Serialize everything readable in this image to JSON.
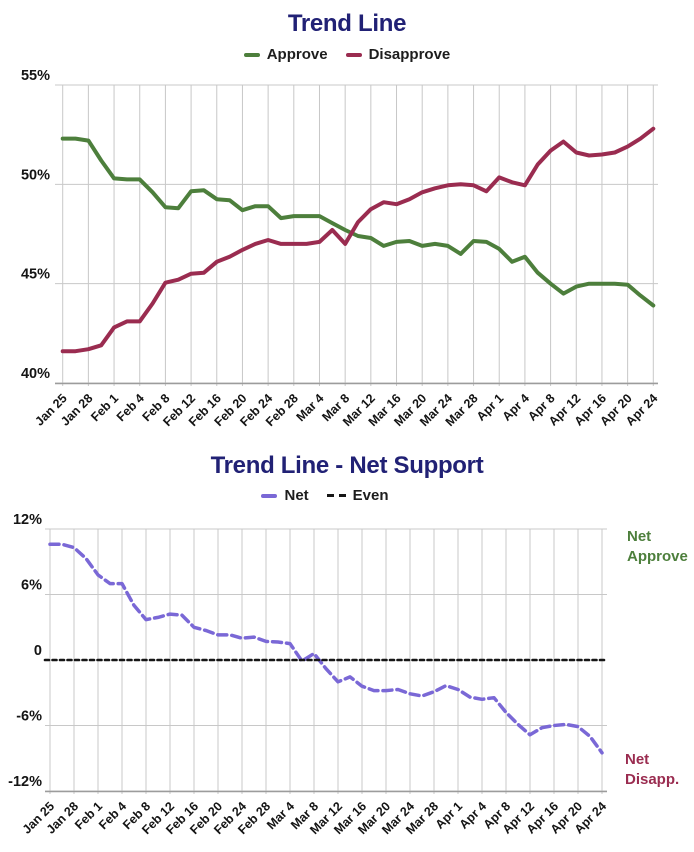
{
  "chart_data": [
    {
      "type": "line",
      "title": "Trend Line",
      "legend_position": "top-center",
      "grid": true,
      "ylim": [
        40,
        55
      ],
      "yticks": [
        {
          "value": 55,
          "label": "55%"
        },
        {
          "value": 50,
          "label": "50%"
        },
        {
          "value": 45,
          "label": "45%"
        },
        {
          "value": 40,
          "label": "40%"
        }
      ],
      "x_tick_labels": [
        "Jan 25",
        "Jan 28",
        "Feb 1",
        "Feb 4",
        "Feb 8",
        "Feb 12",
        "Feb 16",
        "Feb 20",
        "Feb 24",
        "Feb 28",
        "Mar 4",
        "Mar 8",
        "Mar 12",
        "Mar 16",
        "Mar 20",
        "Mar 24",
        "Mar 28",
        "Apr 1",
        "Apr 4",
        "Apr 8",
        "Apr 12",
        "Apr 16",
        "Apr 20",
        "Apr 24"
      ],
      "points_per_tick_interval": 2,
      "series": [
        {
          "name": "Approve",
          "color": "#4d7f3c",
          "line_style": "solid",
          "values": [
            52.3,
            52.3,
            52.2,
            51.2,
            50.3,
            50.25,
            50.25,
            49.6,
            48.85,
            48.8,
            49.65,
            49.7,
            49.25,
            49.2,
            48.7,
            48.9,
            48.9,
            48.3,
            48.4,
            48.4,
            48.4,
            48.05,
            47.7,
            47.4,
            47.3,
            46.9,
            47.1,
            47.15,
            46.9,
            47.0,
            46.9,
            46.5,
            47.15,
            47.1,
            46.75,
            46.1,
            46.35,
            45.55,
            45.0,
            44.5,
            44.85,
            45.0,
            45.0,
            45.0,
            44.95,
            44.4,
            43.9
          ]
        },
        {
          "name": "Disapprove",
          "color": "#9a2c50",
          "line_style": "solid",
          "values": [
            41.6,
            41.6,
            41.7,
            41.9,
            42.8,
            43.1,
            43.1,
            44.0,
            45.05,
            45.2,
            45.5,
            45.55,
            46.1,
            46.35,
            46.7,
            47.0,
            47.2,
            47.0,
            47.0,
            47.0,
            47.1,
            47.7,
            47.0,
            48.1,
            48.75,
            49.1,
            49.0,
            49.25,
            49.6,
            49.8,
            49.95,
            50.0,
            49.95,
            49.65,
            50.35,
            50.1,
            49.95,
            51.0,
            51.7,
            52.15,
            51.6,
            51.45,
            51.5,
            51.6,
            51.9,
            52.3,
            52.8
          ]
        }
      ]
    },
    {
      "type": "line",
      "title": "Trend Line - Net Support",
      "legend_position": "top-center",
      "grid": true,
      "ylim": [
        -12,
        12
      ],
      "yticks": [
        {
          "value": 12,
          "label": "12%"
        },
        {
          "value": 6,
          "label": "6%"
        },
        {
          "value": 0,
          "label": "0"
        },
        {
          "value": -6,
          "label": "-6%"
        },
        {
          "value": -12,
          "label": "-12%"
        }
      ],
      "x_tick_labels": [
        "Jan 25",
        "Jan 28",
        "Feb 1",
        "Feb 4",
        "Feb 8",
        "Feb 12",
        "Feb 16",
        "Feb 20",
        "Feb 24",
        "Feb 28",
        "Mar 4",
        "Mar 8",
        "Mar 12",
        "Mar 16",
        "Mar 20",
        "Mar 24",
        "Mar 28",
        "Apr 1",
        "Apr 4",
        "Apr 8",
        "Apr 12",
        "Apr 16",
        "Apr 20",
        "Apr 24"
      ],
      "points_per_tick_interval": 2,
      "series": [
        {
          "name": "Net",
          "color": "#7a68d6",
          "line_style": "dashed",
          "values": [
            10.6,
            10.6,
            10.3,
            9.3,
            7.8,
            7.0,
            7.0,
            5.0,
            3.7,
            3.9,
            4.2,
            4.1,
            3.0,
            2.7,
            2.3,
            2.3,
            2.0,
            2.1,
            1.7,
            1.65,
            1.5,
            -0.1,
            0.6,
            -0.8,
            -2.0,
            -1.55,
            -2.4,
            -2.8,
            -2.8,
            -2.7,
            -3.1,
            -3.3,
            -2.9,
            -2.35,
            -2.7,
            -3.4,
            -3.6,
            -3.45,
            -4.8,
            -5.9,
            -6.85,
            -6.2,
            -6.0,
            -5.9,
            -6.1,
            -7.0,
            -8.5
          ]
        },
        {
          "name": "Even",
          "color": "#161616",
          "line_style": "dotted",
          "constant": 0
        }
      ],
      "annotations": [
        {
          "lines": [
            "Net",
            "Approve"
          ],
          "color": "#4d7f3c",
          "position": "right-top"
        },
        {
          "lines": [
            "Net",
            "Disapp."
          ],
          "color": "#9a2c50",
          "position": "right-bottom"
        }
      ]
    }
  ]
}
